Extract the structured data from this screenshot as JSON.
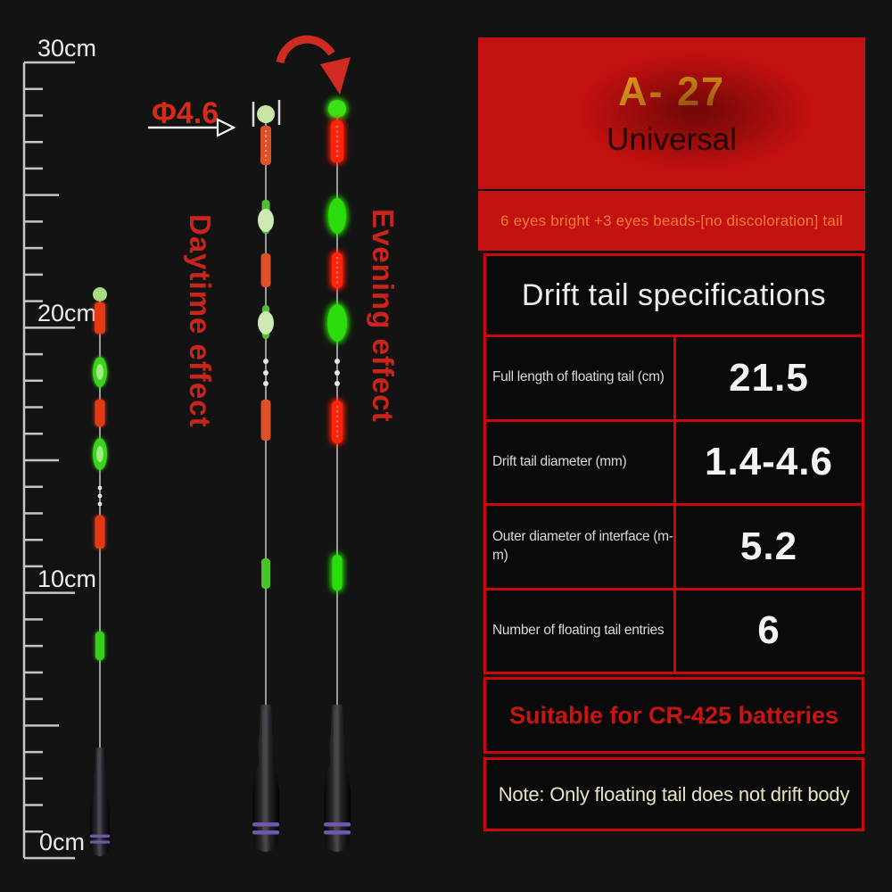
{
  "scene": {
    "ruler_labels": [
      "30cm",
      "20cm",
      "10cm",
      "0cm"
    ],
    "diameter_label": "Φ4.6",
    "daytime_label": "Daytime effect",
    "evening_label": "Evening effect"
  },
  "panel": {
    "model": "A- 27",
    "subtitle": "Universal",
    "banner": "6 eyes bright +3 eyes beads-[no discoloration] tail",
    "spec_table": {
      "title": "Drift tail specifications",
      "rows": [
        {
          "label": "Full length of floating tail (cm)",
          "value": "21.5"
        },
        {
          "label": "Drift tail diameter (mm)",
          "value": "1.4-4.6"
        },
        {
          "label": "Outer diameter of interface (m-\nm)",
          "value": "5.2"
        },
        {
          "label": "Number of floating tail entries",
          "value": "6"
        }
      ]
    },
    "battery_note": "Suitable for CR-425 batteries",
    "footer_note": "Note: Only floating tail does not drift body"
  },
  "colors": {
    "background": "#131313",
    "panel_red": "#c11110",
    "border_red": "#cc0707",
    "model_yellow": "#f1a71f",
    "banner_orange": "#ff7a2e",
    "battery_red": "#c91414",
    "note_cream": "#e9e3c6",
    "evening_red": "#ff2110",
    "evening_green": "#2cdb0e",
    "daytime_red": "#dd5128",
    "ring_purple": "#6f58ab"
  }
}
